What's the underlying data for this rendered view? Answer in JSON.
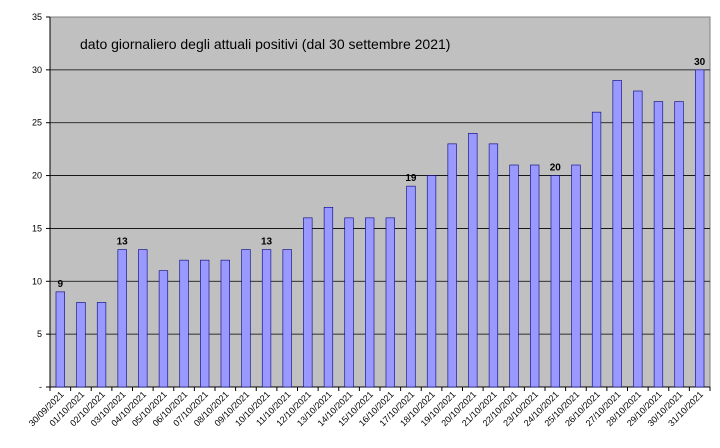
{
  "chart_data": {
    "type": "bar",
    "title": "dato giornaliero degli attuali positivi (dal 30 settembre 2021)",
    "xlabel": "",
    "ylabel": "",
    "ylim": [
      0,
      35
    ],
    "yticks": [
      0,
      5,
      10,
      15,
      20,
      25,
      30,
      35
    ],
    "ytick_labels": [
      "-",
      "5",
      "10",
      "15",
      "20",
      "25",
      "30",
      "35"
    ],
    "grid": true,
    "legend": "none",
    "colors": {
      "plot_bg": "#c0c0c0",
      "bar_fill": "#9999ff",
      "bar_stroke": "#000080",
      "grid": "#000000"
    },
    "categories": [
      "30/09/2021",
      "01/10/2021",
      "02/10/2021",
      "03/10/2021",
      "04/10/2021",
      "05/10/2021",
      "06/10/2021",
      "07/10/2021",
      "08/10/2021",
      "09/10/2021",
      "10/10/2021",
      "11/10/2021",
      "12/10/2021",
      "13/10/2021",
      "14/10/2021",
      "15/10/2021",
      "16/10/2021",
      "17/10/2021",
      "18/10/2021",
      "19/10/2021",
      "20/10/2021",
      "21/10/2021",
      "22/10/2021",
      "23/10/2021",
      "24/10/2021",
      "25/10/2021",
      "26/10/2021",
      "27/10/2021",
      "28/10/2021",
      "29/10/2021",
      "30/10/2021",
      "31/10/2021"
    ],
    "values": [
      9,
      8,
      8,
      13,
      13,
      11,
      12,
      12,
      12,
      13,
      13,
      13,
      16,
      17,
      16,
      16,
      16,
      19,
      20,
      23,
      24,
      23,
      21,
      21,
      20,
      21,
      26,
      29,
      28,
      27,
      27,
      30
    ],
    "data_labels": [
      {
        "category": "30/09/2021",
        "text": "9"
      },
      {
        "category": "03/10/2021",
        "text": "13"
      },
      {
        "category": "10/10/2021",
        "text": "13"
      },
      {
        "category": "17/10/2021",
        "text": "19"
      },
      {
        "category": "24/10/2021",
        "text": "20"
      },
      {
        "category": "31/10/2021",
        "text": "30"
      }
    ]
  }
}
